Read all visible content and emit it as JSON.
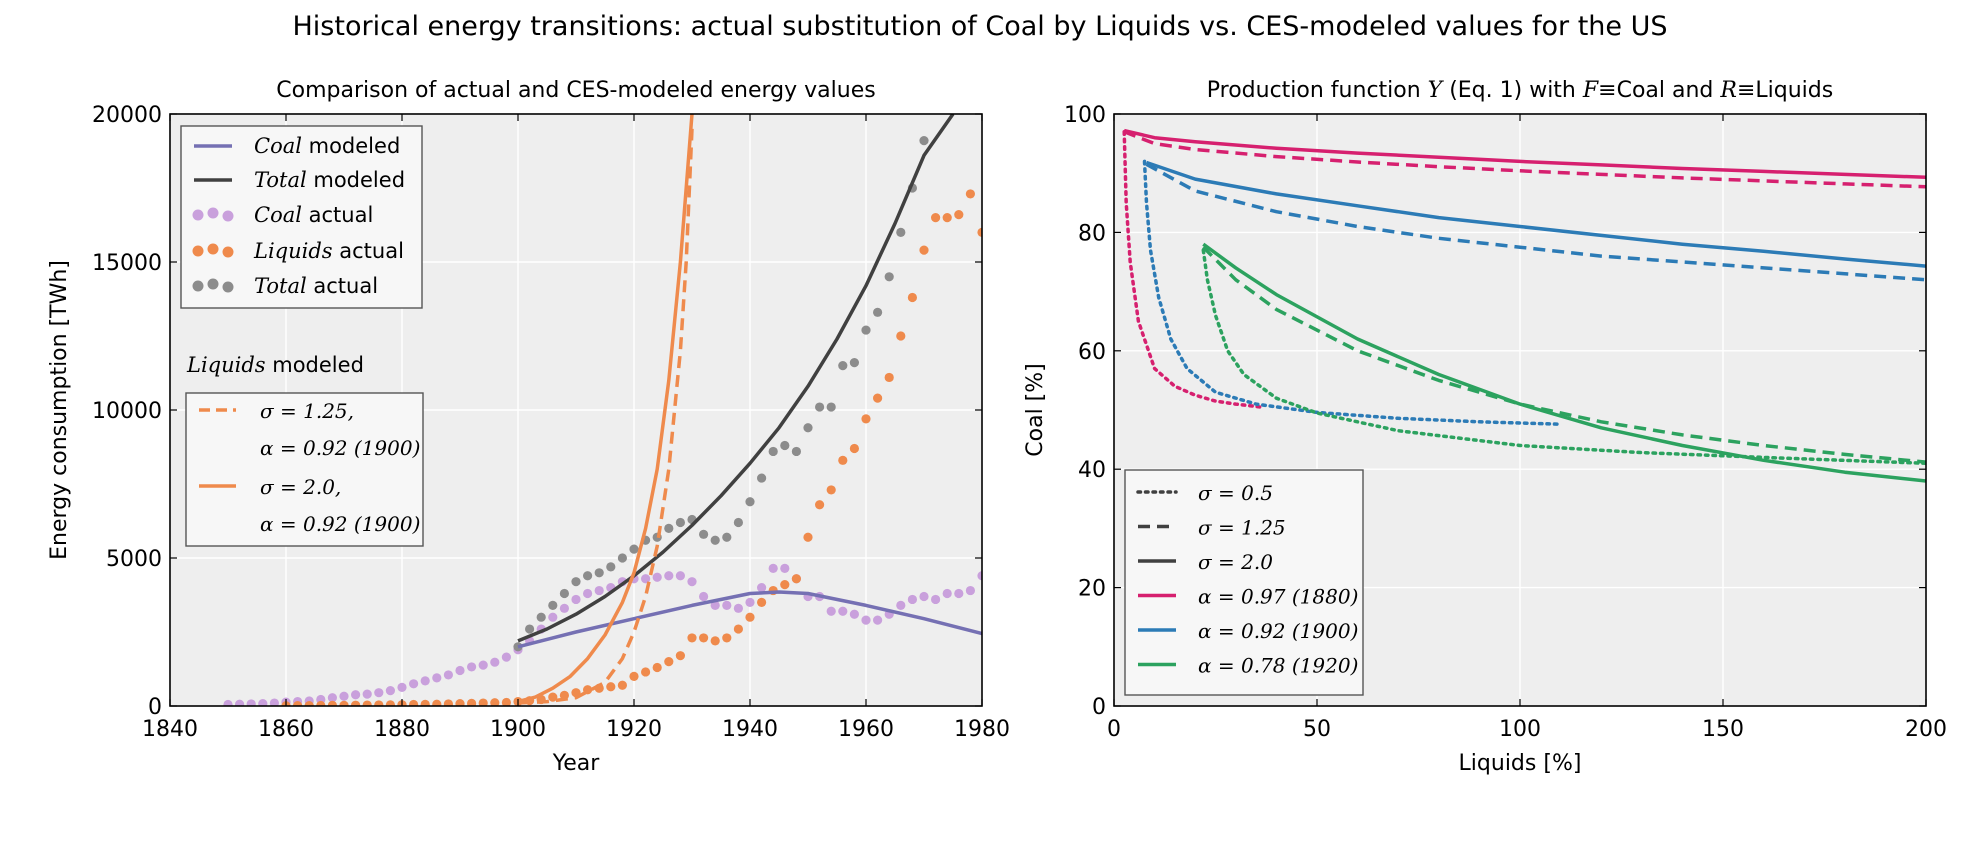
{
  "figure": {
    "suptitle": "Historical energy transitions: actual substitution of Coal by Liquids vs. CES-modeled values for the US"
  },
  "chart_data": [
    {
      "type": "line",
      "title": "Comparison of actual and CES-modeled energy values",
      "xlabel": "Year",
      "ylabel": "Energy consumption [TWh]",
      "xlim": [
        1840,
        1980
      ],
      "ylim": [
        0,
        20000
      ],
      "xticks": [
        "1840",
        "1860",
        "1880",
        "1900",
        "1920",
        "1940",
        "1960",
        "1980"
      ],
      "yticks": [
        "0",
        "5000",
        "10000",
        "15000",
        "20000"
      ],
      "grid": true,
      "legend_main": {
        "placement": "upper-left",
        "entries": [
          {
            "math": "Coal",
            "text": " modeled"
          },
          {
            "math": "Total",
            "text": " modeled"
          },
          {
            "math": "Coal",
            "text": " actual"
          },
          {
            "math": "Liquids",
            "text": " actual"
          },
          {
            "math": "Total",
            "text": " actual"
          }
        ]
      },
      "legend_liquids": {
        "placement": "middle-left",
        "title_math": "Liquids",
        "title_text": " modeled",
        "entries": [
          {
            "line1": "σ = 1.25,",
            "line2": "α = 0.92 (1900)"
          },
          {
            "line1": "σ = 2.0,",
            "line2": "α = 0.92 (1900)"
          }
        ]
      },
      "colors": {
        "coal": "#7570b3",
        "liquids": "#ef8a4c",
        "total": "#404040",
        "coal_actual": "#c9a0dc",
        "total_actual": "#8c8c8c"
      },
      "series": [
        {
          "key": "coal_actual",
          "kind": "scatter",
          "color": "#c9a0dc",
          "x": [
            1850,
            1852,
            1854,
            1856,
            1858,
            1860,
            1862,
            1864,
            1866,
            1868,
            1870,
            1872,
            1874,
            1876,
            1878,
            1880,
            1882,
            1884,
            1886,
            1888,
            1890,
            1892,
            1894,
            1896,
            1898,
            1900,
            1902,
            1904,
            1906,
            1908,
            1910,
            1912,
            1914,
            1916,
            1918,
            1920,
            1922,
            1924,
            1926,
            1928,
            1930,
            1932,
            1934,
            1936,
            1938,
            1940,
            1942,
            1944,
            1946,
            1948,
            1950,
            1952,
            1954,
            1956,
            1958,
            1960,
            1962,
            1964,
            1966,
            1968,
            1970,
            1972,
            1974,
            1976,
            1978,
            1980
          ],
          "y": [
            50,
            60,
            70,
            80,
            100,
            130,
            150,
            170,
            220,
            280,
            330,
            380,
            400,
            450,
            520,
            630,
            750,
            850,
            950,
            1050,
            1200,
            1320,
            1380,
            1480,
            1650,
            1900,
            2200,
            2600,
            3000,
            3300,
            3600,
            3800,
            3900,
            4000,
            4200,
            4300,
            4300,
            4350,
            4400,
            4400,
            4200,
            3700,
            3400,
            3400,
            3300,
            3500,
            4000,
            4650,
            4650,
            4300,
            3700,
            3700,
            3200,
            3200,
            3100,
            2900,
            2900,
            3100,
            3400,
            3600,
            3700,
            3600,
            3800,
            3800,
            3900,
            4400
          ]
        },
        {
          "key": "liquids_actual",
          "kind": "scatter",
          "color": "#ef8a4c",
          "x": [
            1860,
            1862,
            1864,
            1866,
            1868,
            1870,
            1872,
            1874,
            1876,
            1878,
            1880,
            1882,
            1884,
            1886,
            1888,
            1890,
            1892,
            1894,
            1896,
            1898,
            1900,
            1902,
            1904,
            1906,
            1908,
            1910,
            1912,
            1914,
            1916,
            1918,
            1920,
            1922,
            1924,
            1926,
            1928,
            1930,
            1932,
            1934,
            1936,
            1938,
            1940,
            1942,
            1944,
            1946,
            1948,
            1950,
            1952,
            1954,
            1956,
            1958,
            1960,
            1962,
            1964,
            1966,
            1968,
            1970,
            1972,
            1974,
            1976,
            1978,
            1980
          ],
          "y": [
            10,
            12,
            14,
            16,
            20,
            24,
            28,
            32,
            36,
            40,
            45,
            50,
            55,
            60,
            70,
            80,
            90,
            100,
            110,
            120,
            150,
            180,
            220,
            300,
            360,
            450,
            550,
            600,
            650,
            700,
            1000,
            1150,
            1300,
            1500,
            1700,
            2300,
            2300,
            2200,
            2300,
            2600,
            3000,
            3500,
            3900,
            4100,
            4300,
            5700,
            6800,
            7300,
            8300,
            8700,
            9700,
            10400,
            11100,
            12500,
            13800,
            15400,
            16500,
            16500,
            16600,
            17300,
            16000
          ]
        },
        {
          "key": "total_actual",
          "kind": "scatter",
          "color": "#8c8c8c",
          "x": [
            1900,
            1902,
            1904,
            1906,
            1908,
            1910,
            1912,
            1914,
            1916,
            1918,
            1920,
            1922,
            1924,
            1926,
            1928,
            1930,
            1932,
            1934,
            1936,
            1938,
            1940,
            1942,
            1944,
            1946,
            1948,
            1950,
            1952,
            1954,
            1956,
            1958,
            1960,
            1962,
            1964,
            1966,
            1968,
            1970
          ],
          "y": [
            2000,
            2600,
            3000,
            3400,
            3800,
            4200,
            4400,
            4500,
            4700,
            5000,
            5300,
            5600,
            5700,
            6000,
            6200,
            6300,
            5800,
            5600,
            5700,
            6200,
            6900,
            7700,
            8600,
            8800,
            8600,
            9400,
            10100,
            10100,
            11500,
            11600,
            12700,
            13300,
            14500,
            16000,
            17500,
            19100
          ]
        },
        {
          "key": "coal_modeled",
          "kind": "line",
          "color": "#7570b3",
          "dash": "solid",
          "x": [
            1900,
            1910,
            1920,
            1930,
            1940,
            1945,
            1950,
            1960,
            1970,
            1980
          ],
          "y": [
            2000,
            2500,
            2950,
            3400,
            3800,
            3850,
            3800,
            3400,
            2950,
            2450
          ]
        },
        {
          "key": "total_modeled",
          "kind": "line",
          "color": "#404040",
          "dash": "solid",
          "x": [
            1900,
            1905,
            1910,
            1915,
            1920,
            1925,
            1930,
            1935,
            1940,
            1945,
            1950,
            1955,
            1960,
            1965,
            1970,
            1975
          ],
          "y": [
            2200,
            2600,
            3100,
            3700,
            4400,
            5200,
            6100,
            7100,
            8200,
            9400,
            10800,
            12400,
            14200,
            16300,
            18600,
            20000
          ]
        },
        {
          "key": "liquids_modeled_s125",
          "kind": "line",
          "color": "#ef8a4c",
          "dash": "dashed",
          "x": [
            1900,
            1905,
            1910,
            1915,
            1918,
            1920,
            1922,
            1924,
            1926,
            1928,
            1929,
            1930
          ],
          "y": [
            100,
            150,
            280,
            800,
            1600,
            2500,
            3700,
            5400,
            8000,
            12000,
            15000,
            19500
          ]
        },
        {
          "key": "liquids_modeled_s20",
          "kind": "line",
          "color": "#ef8a4c",
          "dash": "solid",
          "x": [
            1900,
            1903,
            1906,
            1909,
            1912,
            1915,
            1918,
            1920,
            1922,
            1924,
            1926,
            1928,
            1929,
            1930
          ],
          "y": [
            150,
            300,
            600,
            1000,
            1600,
            2400,
            3500,
            4500,
            6000,
            8000,
            11000,
            15000,
            17500,
            20000
          ]
        }
      ]
    },
    {
      "type": "line",
      "title_parts": [
        "Production function ",
        "Y",
        " (Eq. 1) with ",
        "F",
        "≡",
        "Coal and ",
        "R",
        "≡",
        "Liquids"
      ],
      "xlabel": "Liquids [%]",
      "ylabel": "Coal [%]",
      "xlim": [
        0,
        200
      ],
      "ylim": [
        0,
        100
      ],
      "xticks": [
        "0",
        "50",
        "100",
        "150",
        "200"
      ],
      "yticks": [
        "0",
        "20",
        "40",
        "60",
        "80",
        "100"
      ],
      "grid": true,
      "legend": {
        "placement": "lower-left",
        "entries": [
          {
            "label": "σ = 0.5",
            "style": "dotted",
            "color": "#404040"
          },
          {
            "label": "σ = 1.25",
            "style": "dashed",
            "color": "#404040"
          },
          {
            "label": "σ = 2.0",
            "style": "solid",
            "color": "#404040"
          },
          {
            "label": "α = 0.97 (1880)",
            "style": "solid",
            "color": "#d6206f"
          },
          {
            "label": "α = 0.92 (1900)",
            "style": "solid",
            "color": "#2c7bb6"
          },
          {
            "label": "α = 0.78 (1920)",
            "style": "solid",
            "color": "#2ca25f"
          }
        ]
      },
      "series": [
        {
          "key": "a097_s05",
          "color": "#d6206f",
          "dash": "dotted",
          "x": [
            2.5,
            3,
            4,
            6,
            10,
            15,
            20,
            25,
            30,
            36
          ],
          "y": [
            97,
            85,
            75,
            65,
            57,
            54,
            52.5,
            51.5,
            51,
            50.5
          ]
        },
        {
          "key": "a097_s125",
          "color": "#d6206f",
          "dash": "dashed",
          "x": [
            2.5,
            10,
            20,
            40,
            60,
            80,
            100,
            120,
            140,
            160,
            180,
            200
          ],
          "y": [
            97,
            95,
            94,
            92.8,
            91.9,
            91.1,
            90.4,
            89.8,
            89.2,
            88.7,
            88.2,
            87.7
          ]
        },
        {
          "key": "a097_s20",
          "color": "#d6206f",
          "dash": "solid",
          "x": [
            2.5,
            10,
            20,
            40,
            60,
            80,
            100,
            120,
            140,
            160,
            180,
            200
          ],
          "y": [
            97.2,
            96,
            95.3,
            94.2,
            93.4,
            92.7,
            92,
            91.4,
            90.8,
            90.3,
            89.8,
            89.3
          ]
        },
        {
          "key": "a092_s05",
          "color": "#2c7bb6",
          "dash": "dotted",
          "x": [
            7.5,
            8,
            9,
            11,
            14,
            18,
            25,
            35,
            50,
            70,
            90,
            110
          ],
          "y": [
            92,
            85,
            77,
            69,
            62,
            57,
            53,
            51,
            49.6,
            48.6,
            48,
            47.6
          ]
        },
        {
          "key": "a092_s125",
          "color": "#2c7bb6",
          "dash": "dashed",
          "x": [
            8,
            20,
            40,
            60,
            80,
            100,
            120,
            140,
            160,
            180,
            200
          ],
          "y": [
            91.5,
            87,
            83.5,
            81,
            79,
            77.5,
            76,
            75,
            74,
            73,
            72
          ]
        },
        {
          "key": "a092_s20",
          "color": "#2c7bb6",
          "dash": "solid",
          "x": [
            8,
            20,
            40,
            60,
            80,
            100,
            120,
            140,
            160,
            180,
            200
          ],
          "y": [
            91.8,
            89,
            86.5,
            84.5,
            82.5,
            81,
            79.5,
            78,
            76.8,
            75.5,
            74.3
          ]
        },
        {
          "key": "a078_s05",
          "color": "#2ca25f",
          "dash": "dotted",
          "x": [
            22,
            23,
            25,
            28,
            32,
            40,
            50,
            70,
            100,
            130,
            160,
            200
          ],
          "y": [
            77,
            72,
            66,
            60,
            56,
            52,
            49.5,
            46.5,
            44,
            42.8,
            42,
            41
          ]
        },
        {
          "key": "a078_s125",
          "color": "#2ca25f",
          "dash": "dashed",
          "x": [
            22,
            30,
            40,
            60,
            80,
            100,
            120,
            140,
            160,
            180,
            200
          ],
          "y": [
            77.5,
            72,
            67,
            60,
            55,
            51,
            48,
            45.8,
            44,
            42.5,
            41.2
          ]
        },
        {
          "key": "a078_s20",
          "color": "#2ca25f",
          "dash": "solid",
          "x": [
            22,
            30,
            40,
            60,
            80,
            100,
            120,
            140,
            160,
            180,
            200
          ],
          "y": [
            78,
            74,
            69.5,
            62,
            56,
            51,
            47,
            44,
            41.5,
            39.5,
            38
          ]
        }
      ]
    }
  ]
}
